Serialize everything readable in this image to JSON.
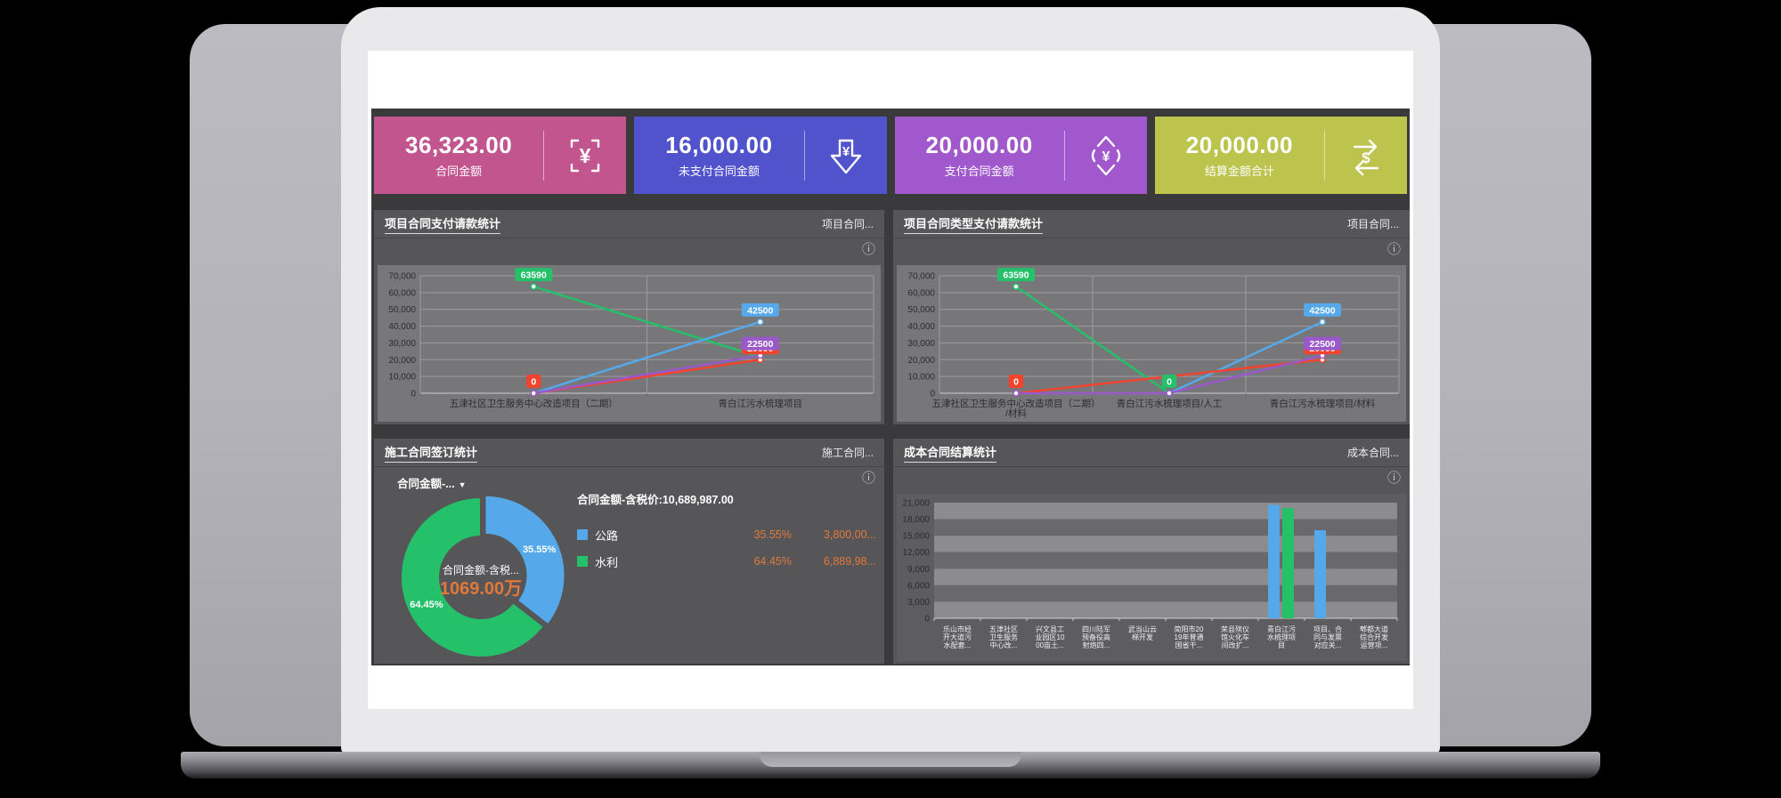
{
  "icons": {
    "info": "ⓘ",
    "dropdown_arrow": "▼"
  },
  "colors": {
    "dashboard_bg": "#3a3a3c",
    "panel_bg": "#565659",
    "plot_bg": "#77777a",
    "accent_orange": "#e0793a",
    "series_green": "#25c06a",
    "series_blue": "#55a9ea",
    "series_red": "#f2432e",
    "series_purple": "#9a59c9"
  },
  "kpi_cards": [
    {
      "value": "36,323.00",
      "label": "合同金额",
      "color": "#c2558d",
      "icon": "yen-frame-icon",
      "icon_glyph": "¥"
    },
    {
      "value": "16,000.00",
      "label": "未支付合同金额",
      "color": "#5053cb",
      "icon": "yen-down-icon",
      "icon_glyph": "¥"
    },
    {
      "value": "20,000.00",
      "label": "支付合同金额",
      "color": "#a158cc",
      "icon": "yen-updown-icon",
      "icon_glyph": "¥"
    },
    {
      "value": "20,000.00",
      "label": "结算金额合计",
      "color": "#bcc44d",
      "icon": "dollar-cycle-icon",
      "icon_glyph": "$"
    }
  ],
  "panels": [
    {
      "title": "项目合同支付请款统计",
      "header_right": "项目合同..."
    },
    {
      "title": "项目合同类型支付请款统计",
      "header_right": "项目合同..."
    },
    {
      "title": "施工合同签订统计",
      "header_right": "施工合同...",
      "filter_label": "合同金额-..."
    },
    {
      "title": "成本合同结算统计",
      "header_right": "成本合同..."
    }
  ],
  "chart_data": [
    {
      "type": "line",
      "title": "项目合同支付请款统计",
      "categories": [
        "五津社区卫生服务中心改造项目（二期）",
        "青白江污水梳理项目"
      ],
      "ylim": [
        0,
        70000
      ],
      "ytick_step": 10000,
      "grid": true,
      "series": [
        {
          "name": "green",
          "color": "#25c06a",
          "values": [
            63590,
            21500
          ],
          "data_labels": [
            63590,
            null
          ]
        },
        {
          "name": "blue",
          "color": "#55a9ea",
          "values": [
            0,
            42500
          ],
          "data_labels": [
            null,
            42500
          ]
        },
        {
          "name": "red",
          "color": "#f2432e",
          "values": [
            0,
            20000
          ],
          "data_labels": [
            0,
            20000
          ]
        },
        {
          "name": "purple",
          "color": "#9a59c9",
          "values": [
            0,
            22500
          ],
          "data_labels": [
            null,
            22500
          ]
        }
      ]
    },
    {
      "type": "line",
      "title": "项目合同类型支付请款统计",
      "categories": [
        "五津社区卫生服务中心改造项目（二期）/材料",
        "青白江污水梳理项目/人工",
        "青白江污水梳理项目/材料"
      ],
      "ylim": [
        0,
        70000
      ],
      "ytick_step": 10000,
      "grid": true,
      "series": [
        {
          "name": "green",
          "color": "#25c06a",
          "values": [
            63590,
            0,
            null
          ],
          "data_labels": [
            63590,
            0,
            null
          ]
        },
        {
          "name": "blue",
          "color": "#55a9ea",
          "values": [
            null,
            0,
            42500
          ],
          "data_labels": [
            null,
            null,
            42500
          ]
        },
        {
          "name": "red",
          "color": "#f2432e",
          "values": [
            0,
            null,
            20000
          ],
          "data_labels": [
            0,
            null,
            20000
          ]
        },
        {
          "name": "purple",
          "color": "#9a59c9",
          "values": [
            0,
            0,
            22500
          ],
          "data_labels": [
            null,
            null,
            22500
          ]
        }
      ]
    },
    {
      "type": "donut",
      "title": "合同金额-含税价:10,689,987.00",
      "center_label": "合同金额-含税...",
      "center_value": "1069.00万",
      "slices": [
        {
          "name": "公路",
          "percent": 35.55,
          "percent_label": "35.55%",
          "amount_label": "3,800,00...",
          "color": "#55a9ea",
          "exploded": true
        },
        {
          "name": "水利",
          "percent": 64.45,
          "percent_label": "64.45%",
          "amount_label": "6,889,98...",
          "color": "#25c06a",
          "exploded": false
        }
      ]
    },
    {
      "type": "bar",
      "title": "成本合同结算统计",
      "ylim": [
        0,
        21000
      ],
      "ytick_step": 3000,
      "grid": "striped",
      "categories": [
        "乐山市经开大道污水配套...",
        "五津社区卫生服务中心改...",
        "兴文县工业园区1000亩土...",
        "四川陆军预备役高射炮四...",
        "武当山云梯开发",
        "简阳市2019年普通国省干...",
        "荣县殡仪馆火化车间改扩...",
        "青白江污水梳理项目",
        "项目、合同与发票对应关...",
        "郫都大道综合开发运营项..."
      ],
      "series": [
        {
          "name": "bar-blue",
          "color": "#55a9ea",
          "values": [
            0,
            0,
            0,
            0,
            0,
            0,
            0,
            20600,
            16000,
            0
          ]
        },
        {
          "name": "bar-green",
          "color": "#25c06a",
          "values": [
            0,
            0,
            0,
            0,
            0,
            0,
            0,
            20000,
            0,
            0
          ]
        }
      ]
    }
  ]
}
